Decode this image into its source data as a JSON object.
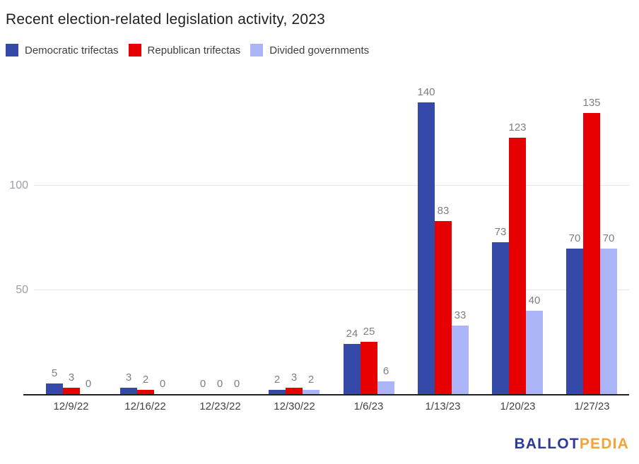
{
  "title": "Recent election-related legislation activity, 2023",
  "chart_data": {
    "type": "bar",
    "title": "Recent election-related legislation activity, 2023",
    "categories": [
      "12/9/22",
      "12/16/22",
      "12/23/22",
      "12/30/22",
      "1/6/23",
      "1/13/23",
      "1/20/23",
      "1/27/23"
    ],
    "series": [
      {
        "name": "Democratic trifectas",
        "color": "#3449a8",
        "values": [
          5,
          3,
          0,
          2,
          24,
          140,
          73,
          70
        ]
      },
      {
        "name": "Republican trifectas",
        "color": "#e60000",
        "values": [
          3,
          2,
          0,
          3,
          25,
          83,
          123,
          135
        ]
      },
      {
        "name": "Divided governments",
        "color": "#aab4f7",
        "values": [
          0,
          0,
          0,
          2,
          6,
          33,
          40,
          70
        ]
      }
    ],
    "yticks": [
      50,
      100
    ],
    "ylim": [
      0,
      152
    ],
    "xlabel": "",
    "ylabel": "",
    "grid": true,
    "legend_position": "top",
    "bar_labels": true
  },
  "logo": {
    "text_blue": "BALLOT",
    "text_orange": "PEDIA",
    "color_blue": "#2b3a97",
    "color_orange": "#f2a33c"
  }
}
